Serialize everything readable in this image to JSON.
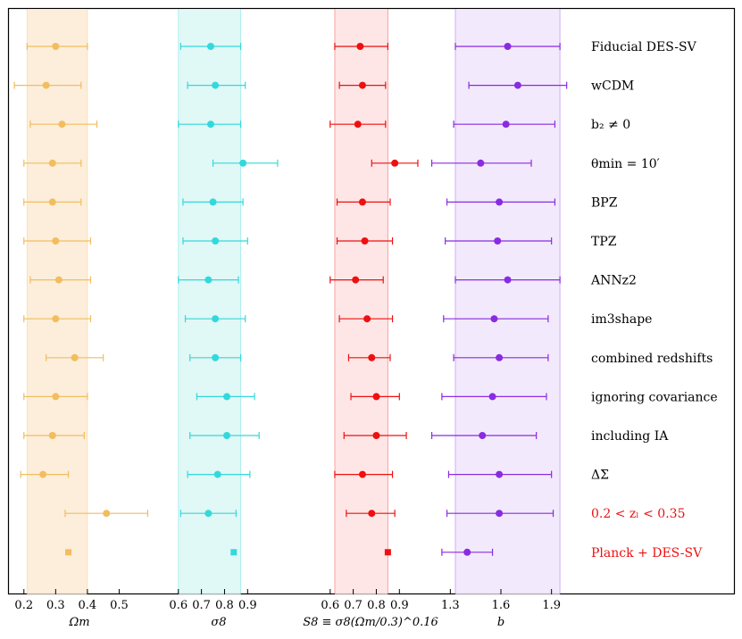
{
  "chart_data": {
    "type": "scatter",
    "title": "",
    "rows": [
      {
        "label": "Fiducial DES-SV",
        "highlight": false
      },
      {
        "label": "wCDM",
        "highlight": false
      },
      {
        "label": "b₂ ≠ 0",
        "highlight": false
      },
      {
        "label": "θmin = 10′",
        "highlight": false
      },
      {
        "label": "BPZ",
        "highlight": false
      },
      {
        "label": "TPZ",
        "highlight": false
      },
      {
        "label": "ANNz2",
        "highlight": false
      },
      {
        "label": "im3shape",
        "highlight": false
      },
      {
        "label": "combined redshifts",
        "highlight": false
      },
      {
        "label": "ignoring covariance",
        "highlight": false
      },
      {
        "label": "including IA",
        "highlight": false
      },
      {
        "label": "ΔΣ",
        "highlight": false
      },
      {
        "label": "0.2 < zₗ < 0.35",
        "highlight": true
      },
      {
        "label": "Planck + DES-SV",
        "highlight": true
      }
    ],
    "panels": [
      {
        "name": "omega-m",
        "xlabel": "Ωm",
        "xlim": [
          0.15,
          0.6
        ],
        "ticks": [
          0.2,
          0.3,
          0.4,
          0.5
        ],
        "tick_labels": [
          "0.2",
          "0.3",
          "0.4",
          "0.5"
        ],
        "band": [
          0.21,
          0.4
        ],
        "color": "#f2bd5e",
        "band_color": "#fbe8cf",
        "points": [
          {
            "value": 0.3,
            "low": 0.21,
            "high": 0.4
          },
          {
            "value": 0.27,
            "low": 0.17,
            "high": 0.38
          },
          {
            "value": 0.32,
            "low": 0.22,
            "high": 0.43
          },
          {
            "value": 0.29,
            "low": 0.2,
            "high": 0.38
          },
          {
            "value": 0.29,
            "low": 0.2,
            "high": 0.38
          },
          {
            "value": 0.3,
            "low": 0.2,
            "high": 0.41
          },
          {
            "value": 0.31,
            "low": 0.22,
            "high": 0.41
          },
          {
            "value": 0.3,
            "low": 0.2,
            "high": 0.41
          },
          {
            "value": 0.36,
            "low": 0.27,
            "high": 0.45
          },
          {
            "value": 0.3,
            "low": 0.2,
            "high": 0.4
          },
          {
            "value": 0.29,
            "low": 0.2,
            "high": 0.39
          },
          {
            "value": 0.26,
            "low": 0.19,
            "high": 0.34
          },
          {
            "value": 0.46,
            "low": 0.33,
            "high": 0.59
          },
          {
            "value": 0.34,
            "low": 0.34,
            "high": 0.34
          }
        ]
      },
      {
        "name": "sigma-8",
        "xlabel": "σ8",
        "xlim": [
          0.45,
          1.1
        ],
        "ticks": [
          0.6,
          0.7,
          0.8,
          0.9
        ],
        "tick_labels": [
          "0.6",
          "0.7",
          "0.8",
          "0.9"
        ],
        "band": [
          0.6,
          0.87
        ],
        "color": "#33d8dc",
        "band_color": "#d5f5f3",
        "points": [
          {
            "value": 0.74,
            "low": 0.61,
            "high": 0.87
          },
          {
            "value": 0.76,
            "low": 0.64,
            "high": 0.89
          },
          {
            "value": 0.74,
            "low": 0.6,
            "high": 0.87
          },
          {
            "value": 0.88,
            "low": 0.75,
            "high": 1.03
          },
          {
            "value": 0.75,
            "low": 0.62,
            "high": 0.88
          },
          {
            "value": 0.76,
            "low": 0.62,
            "high": 0.9
          },
          {
            "value": 0.73,
            "low": 0.6,
            "high": 0.86
          },
          {
            "value": 0.76,
            "low": 0.63,
            "high": 0.89
          },
          {
            "value": 0.76,
            "low": 0.65,
            "high": 0.87
          },
          {
            "value": 0.81,
            "low": 0.68,
            "high": 0.93
          },
          {
            "value": 0.81,
            "low": 0.65,
            "high": 0.95
          },
          {
            "value": 0.77,
            "low": 0.64,
            "high": 0.91
          },
          {
            "value": 0.73,
            "low": 0.61,
            "high": 0.85
          },
          {
            "value": 0.84,
            "low": 0.84,
            "high": 0.84
          }
        ]
      },
      {
        "name": "s-8",
        "xlabel": "S8 ≡ σ8(Ωm/0.3)^0.16",
        "xlim": [
          0.45,
          1.1
        ],
        "ticks": [
          0.6,
          0.7,
          0.8,
          0.9
        ],
        "tick_labels": [
          "0.6",
          "0.7",
          "0.8",
          "0.9"
        ],
        "band": [
          0.62,
          0.85
        ],
        "color": "#ee1010",
        "band_color": "#fddede",
        "points": [
          {
            "value": 0.73,
            "low": 0.62,
            "high": 0.85
          },
          {
            "value": 0.74,
            "low": 0.64,
            "high": 0.84
          },
          {
            "value": 0.72,
            "low": 0.6,
            "high": 0.84
          },
          {
            "value": 0.88,
            "low": 0.78,
            "high": 0.98
          },
          {
            "value": 0.74,
            "low": 0.63,
            "high": 0.86
          },
          {
            "value": 0.75,
            "low": 0.63,
            "high": 0.87
          },
          {
            "value": 0.71,
            "low": 0.6,
            "high": 0.83
          },
          {
            "value": 0.76,
            "low": 0.64,
            "high": 0.87
          },
          {
            "value": 0.78,
            "low": 0.68,
            "high": 0.86
          },
          {
            "value": 0.8,
            "low": 0.69,
            "high": 0.9
          },
          {
            "value": 0.8,
            "low": 0.66,
            "high": 0.93
          },
          {
            "value": 0.74,
            "low": 0.62,
            "high": 0.87
          },
          {
            "value": 0.78,
            "low": 0.67,
            "high": 0.88
          },
          {
            "value": 0.85,
            "low": 0.85,
            "high": 0.85
          }
        ]
      },
      {
        "name": "b",
        "xlabel": "b",
        "xlim": [
          1.15,
          2.05
        ],
        "ticks": [
          1.3,
          1.6,
          1.9
        ],
        "tick_labels": [
          "1.3",
          "1.6",
          "1.9"
        ],
        "band": [
          1.33,
          1.95
        ],
        "color": "#8a2be2",
        "band_color": "#ede3fb",
        "points": [
          {
            "value": 1.64,
            "low": 1.33,
            "high": 1.95
          },
          {
            "value": 1.7,
            "low": 1.41,
            "high": 1.99
          },
          {
            "value": 1.63,
            "low": 1.32,
            "high": 1.92
          },
          {
            "value": 1.48,
            "low": 1.19,
            "high": 1.78
          },
          {
            "value": 1.59,
            "low": 1.28,
            "high": 1.92
          },
          {
            "value": 1.58,
            "low": 1.27,
            "high": 1.9
          },
          {
            "value": 1.64,
            "low": 1.33,
            "high": 1.95
          },
          {
            "value": 1.56,
            "low": 1.26,
            "high": 1.88
          },
          {
            "value": 1.59,
            "low": 1.32,
            "high": 1.88
          },
          {
            "value": 1.55,
            "low": 1.25,
            "high": 1.87
          },
          {
            "value": 1.49,
            "low": 1.19,
            "high": 1.81
          },
          {
            "value": 1.59,
            "low": 1.29,
            "high": 1.9
          },
          {
            "value": 1.59,
            "low": 1.28,
            "high": 1.91
          },
          {
            "value": 1.4,
            "low": 1.25,
            "high": 1.55
          }
        ]
      }
    ],
    "colors": {
      "normal_label": "#000000",
      "highlight_label": "#ee1010"
    }
  }
}
